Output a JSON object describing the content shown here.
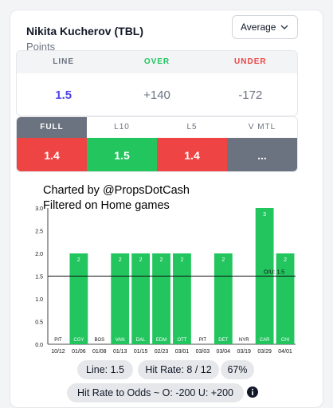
{
  "header": {
    "player": "Nikita Kucherov (TBL)",
    "stat": "Points",
    "dropdown_value": "Average"
  },
  "odds": {
    "headers": [
      "LINE",
      "OVER",
      "UNDER"
    ],
    "values": [
      "1.5",
      "+140",
      "-172"
    ]
  },
  "splits": {
    "tabs": [
      "FULL",
      "L10",
      "L5",
      "V MTL"
    ],
    "values": [
      "1.4",
      "1.5",
      "1.4",
      "..."
    ],
    "colors": [
      "#ef4444",
      "#22c55e",
      "#ef4444",
      "#6b7280"
    ]
  },
  "chart_title": {
    "line1": "Charted by @PropsDotCash",
    "line2": "Filtered on Home games"
  },
  "chart_data": {
    "type": "bar",
    "categories": [
      "10/12",
      "01/06",
      "01/08",
      "01/13",
      "01/15",
      "02/23",
      "03/01",
      "03/03",
      "03/04",
      "03/19",
      "03/29",
      "04/01"
    ],
    "opponents": [
      "PIT",
      "CGY",
      "BOS",
      "VAN",
      "DAL",
      "EDM",
      "OTT",
      "PIT",
      "DET",
      "NYR",
      "CAR",
      "CHI"
    ],
    "values": [
      0,
      2,
      0,
      2,
      2,
      2,
      2,
      0,
      2,
      0,
      3,
      2
    ],
    "value_labels": [
      "",
      "2",
      "",
      "2",
      "2",
      "2",
      "2",
      "",
      "2",
      "",
      "3",
      "2"
    ],
    "yticks": [
      "0.0",
      "0.5",
      "1.0",
      "1.5",
      "2.0",
      "2.5",
      "3.0"
    ],
    "ylim": [
      0,
      3
    ],
    "line_value": 1.5,
    "line_label": "O/U: 1.5",
    "bar_color": "#22c55e"
  },
  "footer": {
    "line_pill": "Line: 1.5",
    "hit_rate_pill": "Hit Rate: 8 / 12",
    "pct_pill": "67%",
    "odds_pill": "Hit Rate to Odds ~ O: -200 U: +200"
  }
}
